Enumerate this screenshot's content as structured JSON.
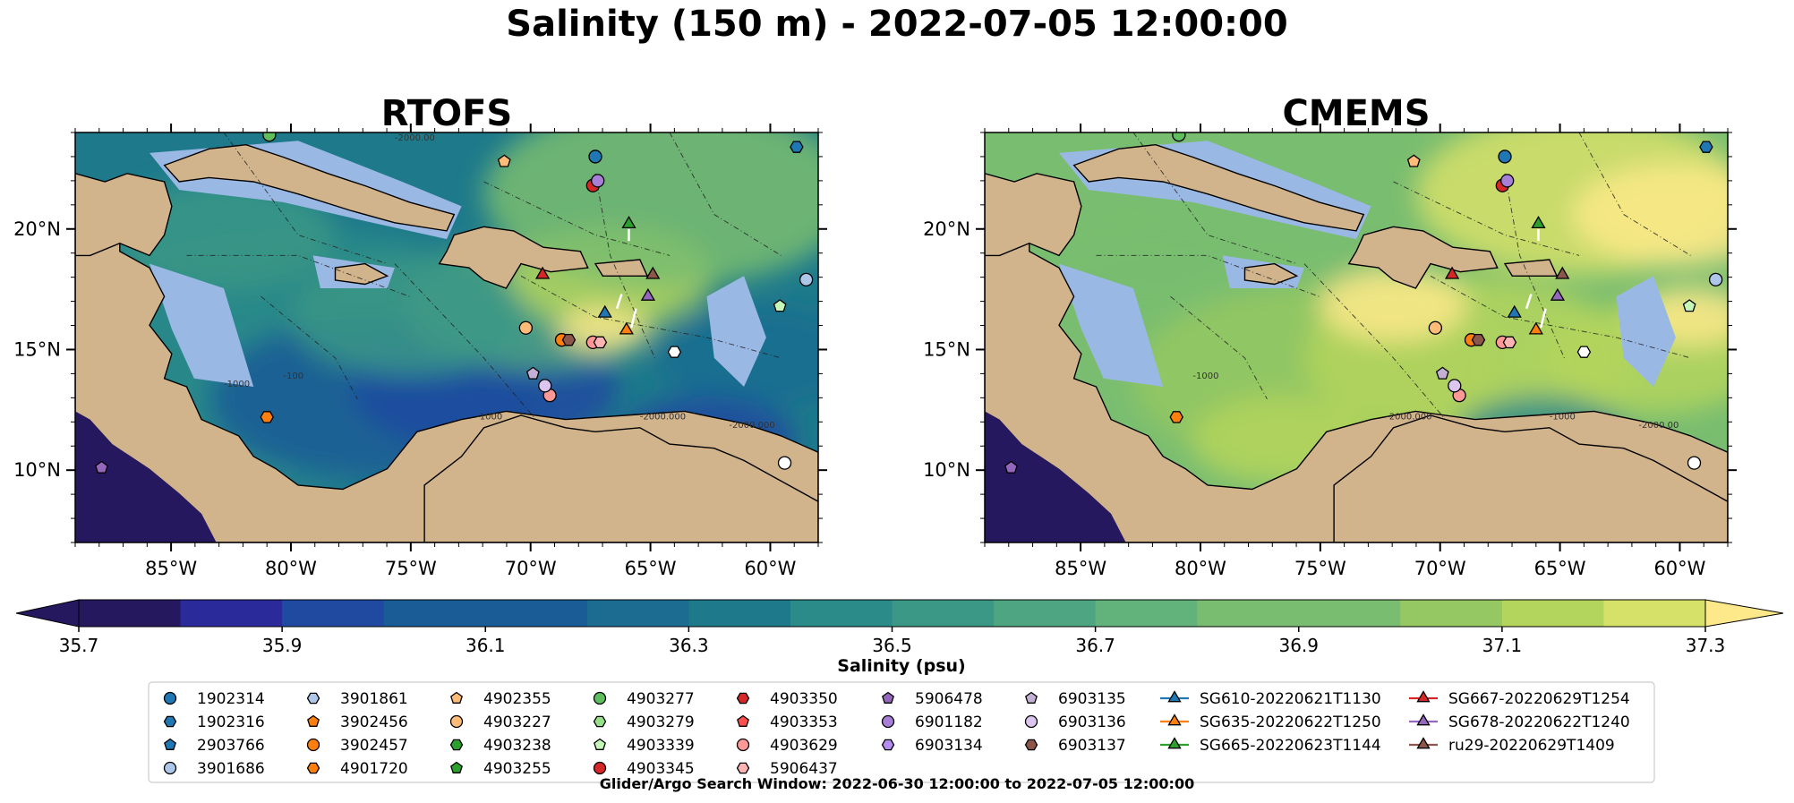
{
  "figure": {
    "suptitle": "Salinity (150 m) - 2022-07-05 12:00:00",
    "footer": "Glider/Argo Search Window: 2022-06-30 12:00:00 to 2022-07-05 12:00:00"
  },
  "colors": {
    "land": "#d2b48c",
    "shelf": "#9ab8e4",
    "ocean_deep": "#2e8f86",
    "coast": "#000000",
    "colormap": [
      "#26185f",
      "#2b2a9b",
      "#1f4aa0",
      "#1a5c96",
      "#1b6c90",
      "#1e7a8b",
      "#2a8b88",
      "#3b9886",
      "#4ea581",
      "#62b27b",
      "#79bd70",
      "#95c862",
      "#b4d55d",
      "#d6e16a",
      "#fde98a"
    ]
  },
  "chart_data": [
    {
      "type": "heatmap",
      "title": "RTOFS",
      "xlim": [
        -89,
        -58
      ],
      "ylim": [
        7,
        24
      ],
      "xticks": [
        -85,
        -80,
        -75,
        -70,
        -65,
        -60
      ],
      "xtick_labels": [
        "85°W",
        "80°W",
        "75°W",
        "70°W",
        "65°W",
        "60°W"
      ],
      "yticks": [
        10,
        15,
        20
      ],
      "ytick_labels": [
        "10°N",
        "15°N",
        "20°N"
      ],
      "salinity_range_psu": [
        35.7,
        37.3
      ],
      "contour_labels": [
        "-100",
        "-1000",
        "-2000.000",
        "-2000.000",
        "-2000.00",
        "-1000"
      ]
    },
    {
      "type": "heatmap",
      "title": "CMEMS",
      "xlim": [
        -89,
        -58
      ],
      "ylim": [
        7,
        24
      ],
      "xticks": [
        -85,
        -80,
        -75,
        -70,
        -65,
        -60
      ],
      "xtick_labels": [
        "85°W",
        "80°W",
        "75°W",
        "70°W",
        "65°W",
        "60°W"
      ],
      "yticks": [
        10,
        15,
        20
      ],
      "ytick_labels": [
        "10°N",
        "15°N",
        "20°N"
      ],
      "salinity_range_psu": [
        35.7,
        37.3
      ],
      "contour_labels": [
        "-1000",
        "-2000.000",
        "-1000",
        "-2000.00"
      ]
    }
  ],
  "colorbar": {
    "label": "Salinity (psu)",
    "min": 35.7,
    "max": 37.3,
    "step": 0.1,
    "ticks": [
      35.7,
      35.9,
      36.1,
      36.3,
      36.5,
      36.7,
      36.9,
      37.1,
      37.3
    ],
    "tick_labels": [
      "35.7",
      "35.9",
      "36.1",
      "36.3",
      "36.5",
      "36.7",
      "36.9",
      "37.1",
      "37.3"
    ]
  },
  "legend": {
    "columns": [
      [
        {
          "label": "1902314",
          "marker": "circle",
          "color": "#1f77b4"
        },
        {
          "label": "1902316",
          "marker": "hexagon",
          "color": "#1f77b4"
        },
        {
          "label": "2903766",
          "marker": "pentagon",
          "color": "#1f77b4"
        },
        {
          "label": "3901686",
          "marker": "circle",
          "color": "#aec7e8"
        }
      ],
      [
        {
          "label": "3901861",
          "marker": "hexagon",
          "color": "#aec7e8"
        },
        {
          "label": "3902456",
          "marker": "pentagon",
          "color": "#ff7f0e"
        },
        {
          "label": "3902457",
          "marker": "circle",
          "color": "#ff7f0e"
        },
        {
          "label": "4901720",
          "marker": "hexagon",
          "color": "#ff7f0e"
        }
      ],
      [
        {
          "label": "4902355",
          "marker": "pentagon",
          "color": "#ffbb78"
        },
        {
          "label": "4903227",
          "marker": "circle",
          "color": "#ffbb78"
        },
        {
          "label": "4903238",
          "marker": "hexagon",
          "color": "#2ca02c"
        },
        {
          "label": "4903255",
          "marker": "pentagon",
          "color": "#2ca02c"
        }
      ],
      [
        {
          "label": "4903277",
          "marker": "circle",
          "color": "#5fbf5f"
        },
        {
          "label": "4903279",
          "marker": "hexagon",
          "color": "#98df8a"
        },
        {
          "label": "4903339",
          "marker": "pentagon",
          "color": "#c6f7b8"
        },
        {
          "label": "4903345",
          "marker": "circle",
          "color": "#d62728"
        }
      ],
      [
        {
          "label": "4903350",
          "marker": "hexagon",
          "color": "#d62728"
        },
        {
          "label": "4903353",
          "marker": "pentagon",
          "color": "#ff4f4f"
        },
        {
          "label": "4903629",
          "marker": "circle",
          "color": "#ff9896"
        },
        {
          "label": "5906437",
          "marker": "hexagon",
          "color": "#ffb3b3"
        }
      ],
      [
        {
          "label": "5906478",
          "marker": "pentagon",
          "color": "#9467bd"
        },
        {
          "label": "6901182",
          "marker": "circle",
          "color": "#a77fd6"
        },
        {
          "label": "6903134",
          "marker": "hexagon",
          "color": "#b58cf0"
        }
      ],
      [
        {
          "label": "6903135",
          "marker": "pentagon",
          "color": "#c5b0d5"
        },
        {
          "label": "6903136",
          "marker": "circle",
          "color": "#dcc6f0"
        },
        {
          "label": "6903137",
          "marker": "hexagon",
          "color": "#8c564b"
        }
      ],
      [
        {
          "label": "SG610-20220621T1130",
          "marker": "triangle",
          "color": "#1f77b4"
        },
        {
          "label": "SG635-20220622T1250",
          "marker": "triangle",
          "color": "#ff7f0e"
        },
        {
          "label": "SG665-20220623T1144",
          "marker": "triangle",
          "color": "#2ca02c"
        }
      ],
      [
        {
          "label": "SG667-20220629T1254",
          "marker": "triangle",
          "color": "#d62728"
        },
        {
          "label": "SG678-20220622T1240",
          "marker": "triangle",
          "color": "#9467bd"
        },
        {
          "label": "ru29-20220629T1409",
          "marker": "triangle",
          "color": "#8c564b"
        }
      ]
    ]
  },
  "observations": [
    {
      "marker": "circle",
      "color": "#1f77b4",
      "lon": -67.3,
      "lat": 23.0
    },
    {
      "marker": "hexagon",
      "color": "#1f77b4",
      "lon": -58.9,
      "lat": 23.4
    },
    {
      "marker": "pentagon",
      "color": "#9467bd",
      "lon": -87.9,
      "lat": 10.1
    },
    {
      "marker": "circle",
      "color": "#aec7e8",
      "lon": -58.5,
      "lat": 17.9
    },
    {
      "marker": "hexagon",
      "color": "#ffffff",
      "lon": -64.0,
      "lat": 14.9
    },
    {
      "marker": "circle",
      "color": "#ffffff",
      "lon": -59.4,
      "lat": 10.3
    },
    {
      "marker": "pentagon",
      "color": "#ffbb78",
      "lon": -71.1,
      "lat": 22.8
    },
    {
      "marker": "circle",
      "color": "#ffbb78",
      "lon": -70.2,
      "lat": 15.9
    },
    {
      "marker": "hexagon",
      "color": "#ff7f0e",
      "lon": -81.0,
      "lat": 12.2
    },
    {
      "marker": "circle",
      "color": "#ff7f0e",
      "lon": -68.7,
      "lat": 15.4
    },
    {
      "marker": "hexagon",
      "color": "#8c564b",
      "lon": -68.4,
      "lat": 15.4
    },
    {
      "marker": "circle",
      "color": "#5fbf5f",
      "lon": -80.9,
      "lat": 23.9
    },
    {
      "marker": "pentagon",
      "color": "#c6f7b8",
      "lon": -59.6,
      "lat": 16.8
    },
    {
      "marker": "circle",
      "color": "#d62728",
      "lon": -67.4,
      "lat": 21.8
    },
    {
      "marker": "circle",
      "color": "#a77fd6",
      "lon": -67.2,
      "lat": 22.0
    },
    {
      "marker": "circle",
      "color": "#ff9896",
      "lon": -67.4,
      "lat": 15.3
    },
    {
      "marker": "hexagon",
      "color": "#ffb3b3",
      "lon": -67.1,
      "lat": 15.3
    },
    {
      "marker": "pentagon",
      "color": "#c5b0d5",
      "lon": -69.9,
      "lat": 14.0
    },
    {
      "marker": "circle",
      "color": "#ff9896",
      "lon": -69.2,
      "lat": 13.1
    },
    {
      "marker": "circle",
      "color": "#dcc6f0",
      "lon": -69.4,
      "lat": 13.5
    },
    {
      "marker": "triangle",
      "color": "#1f77b4",
      "lon": -66.9,
      "lat": 16.5
    },
    {
      "marker": "triangle",
      "color": "#ff7f0e",
      "lon": -66.0,
      "lat": 15.8
    },
    {
      "marker": "triangle",
      "color": "#2ca02c",
      "lon": -65.9,
      "lat": 20.2
    },
    {
      "marker": "triangle",
      "color": "#d62728",
      "lon": -69.5,
      "lat": 18.1
    },
    {
      "marker": "triangle",
      "color": "#9467bd",
      "lon": -65.1,
      "lat": 17.2
    },
    {
      "marker": "triangle",
      "color": "#8c564b",
      "lon": -64.9,
      "lat": 18.1
    }
  ]
}
